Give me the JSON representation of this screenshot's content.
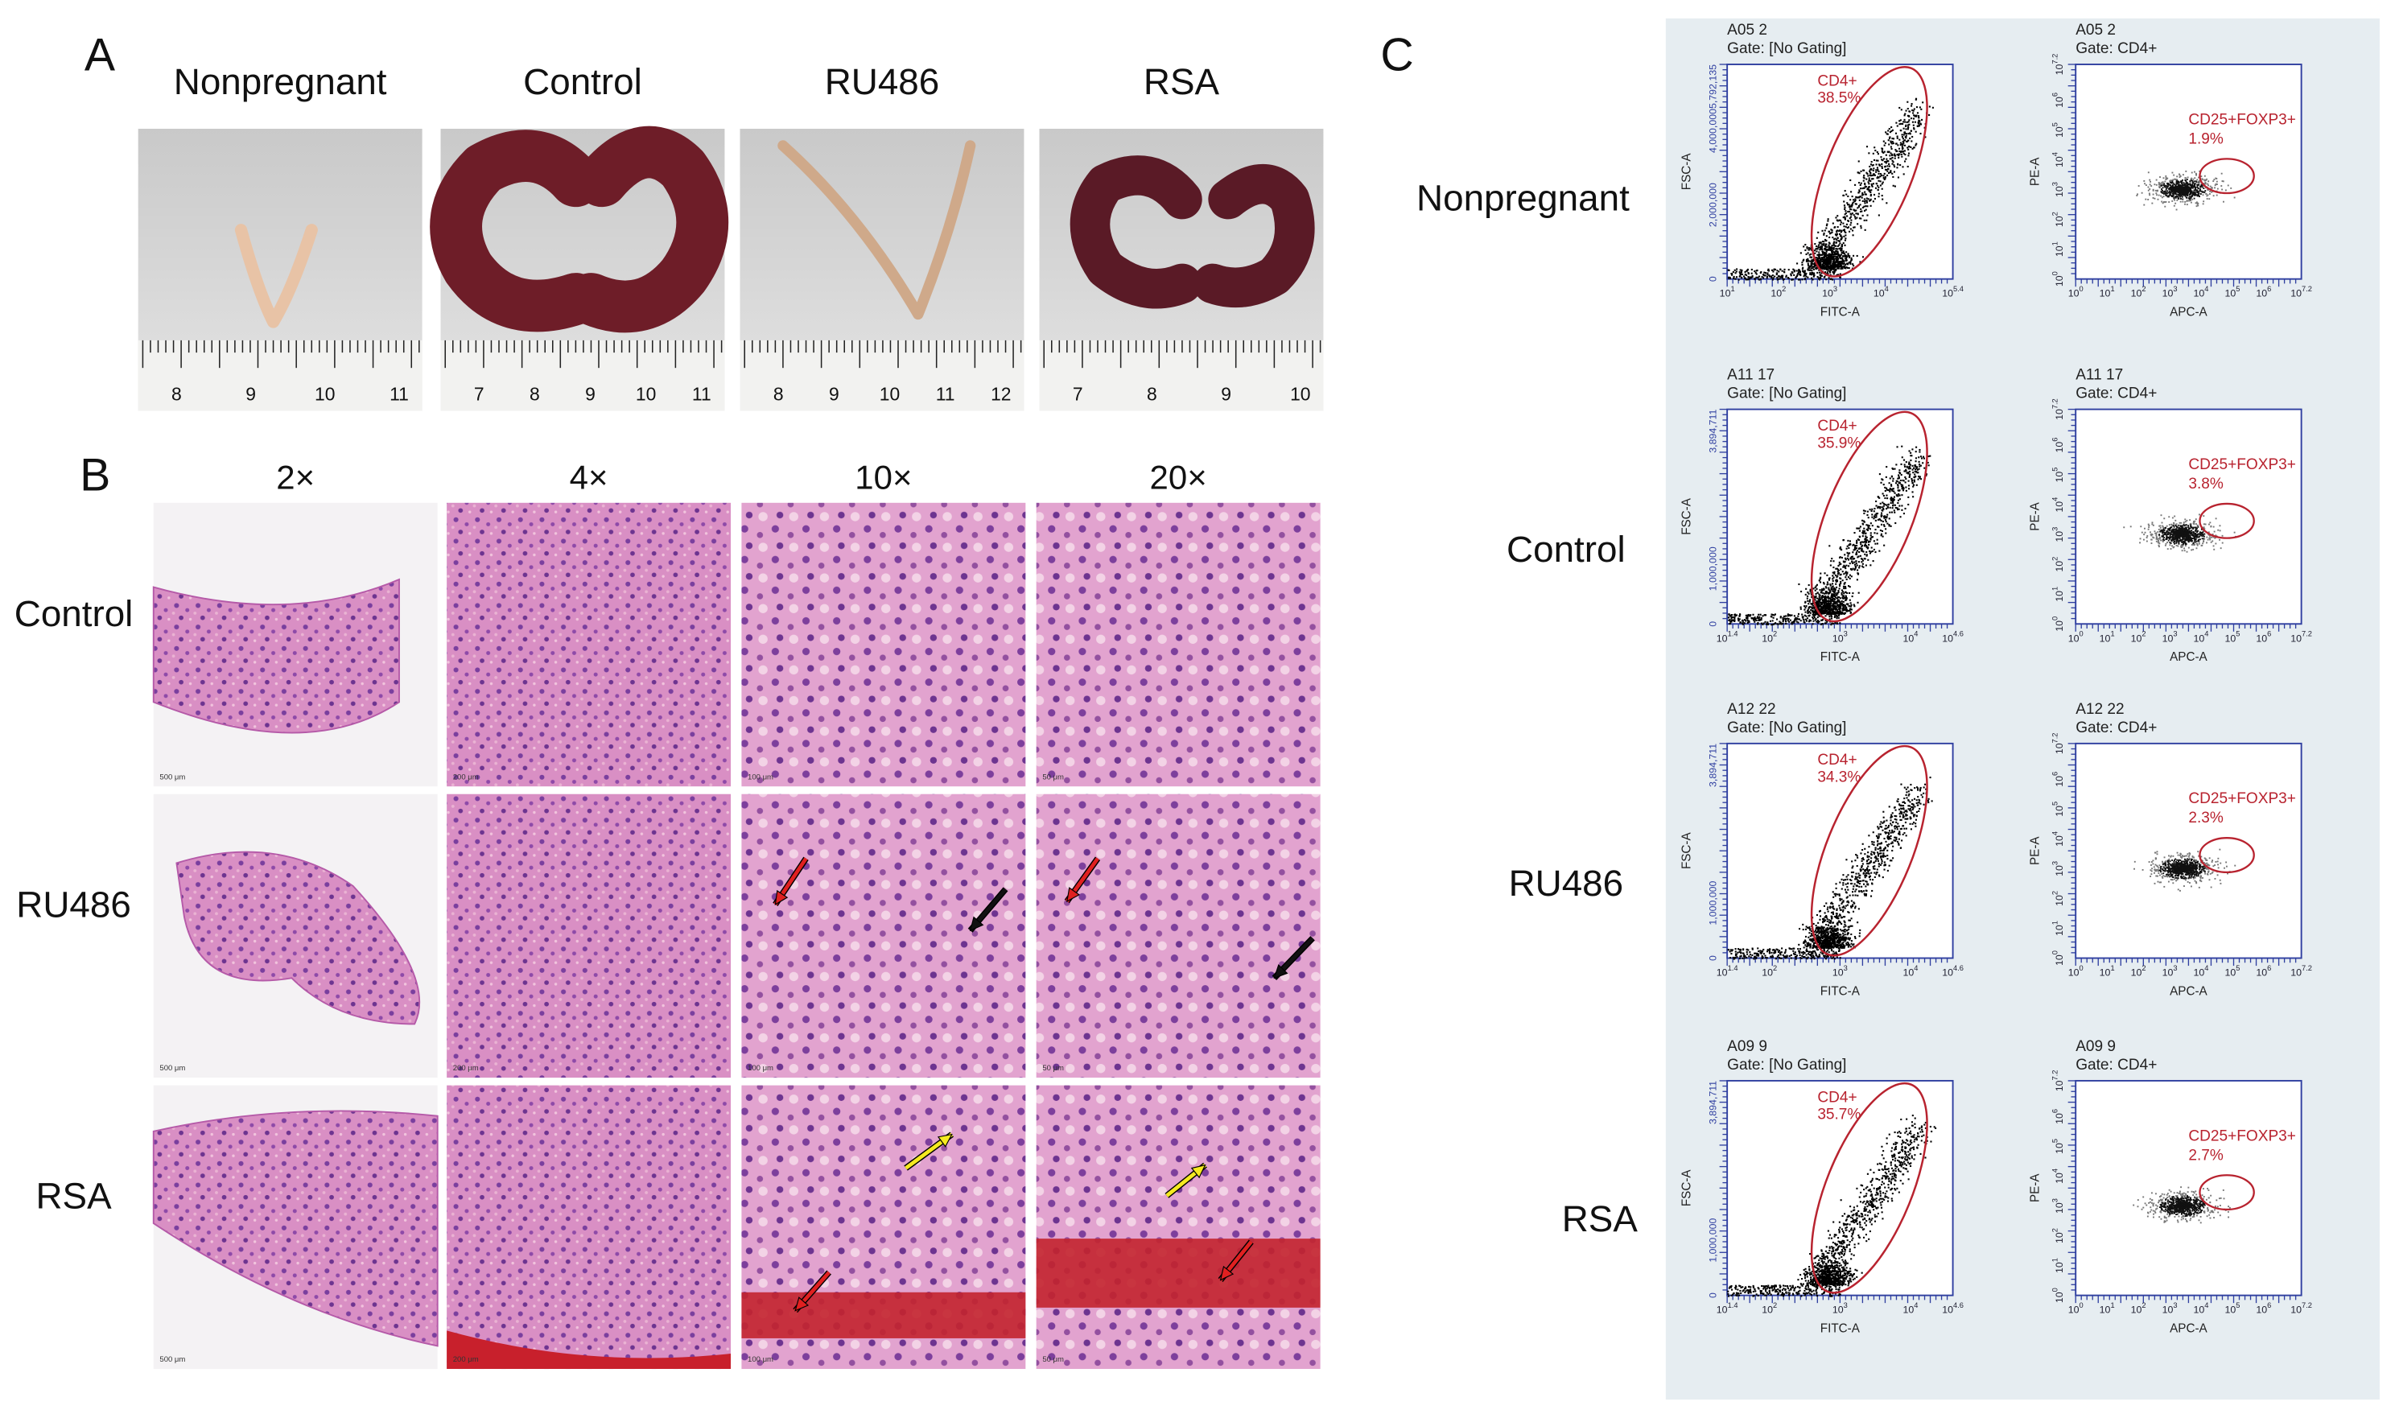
{
  "panel_a": {
    "label": "A",
    "groups": [
      {
        "title": "Nonpregnant",
        "ruler": [
          "8",
          "9",
          "10",
          "11"
        ]
      },
      {
        "title": "Control",
        "ruler": [
          "7",
          "8",
          "9",
          "10",
          "11"
        ]
      },
      {
        "title": "RU486",
        "ruler": [
          "8",
          "9",
          "10",
          "11",
          "12"
        ]
      },
      {
        "title": "RSA",
        "ruler": [
          "7",
          "8",
          "9",
          "10"
        ]
      }
    ]
  },
  "panel_b": {
    "label": "B",
    "magnifications": [
      "2×",
      "4×",
      "10×",
      "20×"
    ],
    "scale_bars": [
      "500 μm",
      "200 μm",
      "100 μm",
      "50 μm"
    ],
    "rows": [
      "Control",
      "RU486",
      "RSA"
    ]
  },
  "panel_c": {
    "label": "C",
    "rows": [
      {
        "name": "Nonpregnant",
        "gate_plot": {
          "sample": "A05 2",
          "gate": "Gate: [No Gating]",
          "population": "CD4+",
          "percent": "38.5%",
          "x_label": "FITC-A",
          "y_label": "FSC-A",
          "y_ticks": [
            "0",
            "2,000,000",
            "4,000,000",
            "5,792,135"
          ],
          "x_ticks": [
            {
              "base": "10",
              "exp": "1"
            },
            {
              "base": "10",
              "exp": "2"
            },
            {
              "base": "10",
              "exp": "3"
            },
            {
              "base": "10",
              "exp": "4"
            },
            {
              "base": "10",
              "exp": "5.4"
            }
          ]
        },
        "treg_plot": {
          "sample": "A05 2",
          "gate": "Gate: CD4+",
          "population": "CD25+FOXP3+",
          "percent": "1.9%",
          "x_label": "APC-A",
          "y_label": "PE-A",
          "y_ticks": [
            {
              "base": "10",
              "exp": "0"
            },
            {
              "base": "10",
              "exp": "1"
            },
            {
              "base": "10",
              "exp": "2"
            },
            {
              "base": "10",
              "exp": "3"
            },
            {
              "base": "10",
              "exp": "4"
            },
            {
              "base": "10",
              "exp": "5"
            },
            {
              "base": "10",
              "exp": "6"
            },
            {
              "base": "10",
              "exp": "7.2"
            }
          ],
          "x_ticks": [
            {
              "base": "10",
              "exp": "0"
            },
            {
              "base": "10",
              "exp": "1"
            },
            {
              "base": "10",
              "exp": "2"
            },
            {
              "base": "10",
              "exp": "3"
            },
            {
              "base": "10",
              "exp": "4"
            },
            {
              "base": "10",
              "exp": "5"
            },
            {
              "base": "10",
              "exp": "6"
            },
            {
              "base": "10",
              "exp": "7.2"
            }
          ]
        }
      },
      {
        "name": "Control",
        "gate_plot": {
          "sample": "A11 17",
          "gate": "Gate: [No Gating]",
          "population": "CD4+",
          "percent": "35.9%",
          "x_label": "FITC-A",
          "y_label": "FSC-A",
          "y_ticks": [
            "0",
            "1,000,000",
            "3,894,711"
          ],
          "x_ticks": [
            {
              "base": "10",
              "exp": "1.4"
            },
            {
              "base": "10",
              "exp": "2"
            },
            {
              "base": "10",
              "exp": "3"
            },
            {
              "base": "10",
              "exp": "4"
            },
            {
              "base": "10",
              "exp": "4.6"
            }
          ]
        },
        "treg_plot": {
          "sample": "A11 17",
          "gate": "Gate: CD4+",
          "population": "CD25+FOXP3+",
          "percent": "3.8%",
          "x_label": "APC-A",
          "y_label": "PE-A",
          "y_ticks": [
            {
              "base": "10",
              "exp": "0"
            },
            {
              "base": "10",
              "exp": "1"
            },
            {
              "base": "10",
              "exp": "2"
            },
            {
              "base": "10",
              "exp": "3"
            },
            {
              "base": "10",
              "exp": "4"
            },
            {
              "base": "10",
              "exp": "5"
            },
            {
              "base": "10",
              "exp": "6"
            },
            {
              "base": "10",
              "exp": "7.2"
            }
          ],
          "x_ticks": [
            {
              "base": "10",
              "exp": "0"
            },
            {
              "base": "10",
              "exp": "1"
            },
            {
              "base": "10",
              "exp": "2"
            },
            {
              "base": "10",
              "exp": "3"
            },
            {
              "base": "10",
              "exp": "4"
            },
            {
              "base": "10",
              "exp": "5"
            },
            {
              "base": "10",
              "exp": "6"
            },
            {
              "base": "10",
              "exp": "7.2"
            }
          ]
        }
      },
      {
        "name": "RU486",
        "gate_plot": {
          "sample": "A12 22",
          "gate": "Gate: [No Gating]",
          "population": "CD4+",
          "percent": "34.3%",
          "x_label": "FITC-A",
          "y_label": "FSC-A",
          "y_ticks": [
            "0",
            "1,000,000",
            "3,894,711"
          ],
          "x_ticks": [
            {
              "base": "10",
              "exp": "1.4"
            },
            {
              "base": "10",
              "exp": "2"
            },
            {
              "base": "10",
              "exp": "3"
            },
            {
              "base": "10",
              "exp": "4"
            },
            {
              "base": "10",
              "exp": "4.6"
            }
          ]
        },
        "treg_plot": {
          "sample": "A12 22",
          "gate": "Gate: CD4+",
          "population": "CD25+FOXP3+",
          "percent": "2.3%",
          "x_label": "APC-A",
          "y_label": "PE-A",
          "y_ticks": [
            {
              "base": "10",
              "exp": "0"
            },
            {
              "base": "10",
              "exp": "1"
            },
            {
              "base": "10",
              "exp": "2"
            },
            {
              "base": "10",
              "exp": "3"
            },
            {
              "base": "10",
              "exp": "4"
            },
            {
              "base": "10",
              "exp": "5"
            },
            {
              "base": "10",
              "exp": "6"
            },
            {
              "base": "10",
              "exp": "7.2"
            }
          ],
          "x_ticks": [
            {
              "base": "10",
              "exp": "0"
            },
            {
              "base": "10",
              "exp": "1"
            },
            {
              "base": "10",
              "exp": "2"
            },
            {
              "base": "10",
              "exp": "3"
            },
            {
              "base": "10",
              "exp": "4"
            },
            {
              "base": "10",
              "exp": "5"
            },
            {
              "base": "10",
              "exp": "6"
            },
            {
              "base": "10",
              "exp": "7.2"
            }
          ]
        }
      },
      {
        "name": "RSA",
        "gate_plot": {
          "sample": "A09 9",
          "gate": "Gate: [No Gating]",
          "population": "CD4+",
          "percent": "35.7%",
          "x_label": "FITC-A",
          "y_label": "FSC-A",
          "y_ticks": [
            "0",
            "1,000,000",
            "3,894,711"
          ],
          "x_ticks": [
            {
              "base": "10",
              "exp": "1.4"
            },
            {
              "base": "10",
              "exp": "2"
            },
            {
              "base": "10",
              "exp": "3"
            },
            {
              "base": "10",
              "exp": "4"
            },
            {
              "base": "10",
              "exp": "4.6"
            }
          ]
        },
        "treg_plot": {
          "sample": "A09 9",
          "gate": "Gate: CD4+",
          "population": "CD25+FOXP3+",
          "percent": "2.7%",
          "x_label": "APC-A",
          "y_label": "PE-A",
          "y_ticks": [
            {
              "base": "10",
              "exp": "0"
            },
            {
              "base": "10",
              "exp": "1"
            },
            {
              "base": "10",
              "exp": "2"
            },
            {
              "base": "10",
              "exp": "3"
            },
            {
              "base": "10",
              "exp": "4"
            },
            {
              "base": "10",
              "exp": "5"
            },
            {
              "base": "10",
              "exp": "6"
            },
            {
              "base": "10",
              "exp": "7.2"
            }
          ],
          "x_ticks": [
            {
              "base": "10",
              "exp": "0"
            },
            {
              "base": "10",
              "exp": "1"
            },
            {
              "base": "10",
              "exp": "2"
            },
            {
              "base": "10",
              "exp": "3"
            },
            {
              "base": "10",
              "exp": "4"
            },
            {
              "base": "10",
              "exp": "5"
            },
            {
              "base": "10",
              "exp": "6"
            },
            {
              "base": "10",
              "exp": "7.2"
            }
          ]
        }
      }
    ]
  }
}
